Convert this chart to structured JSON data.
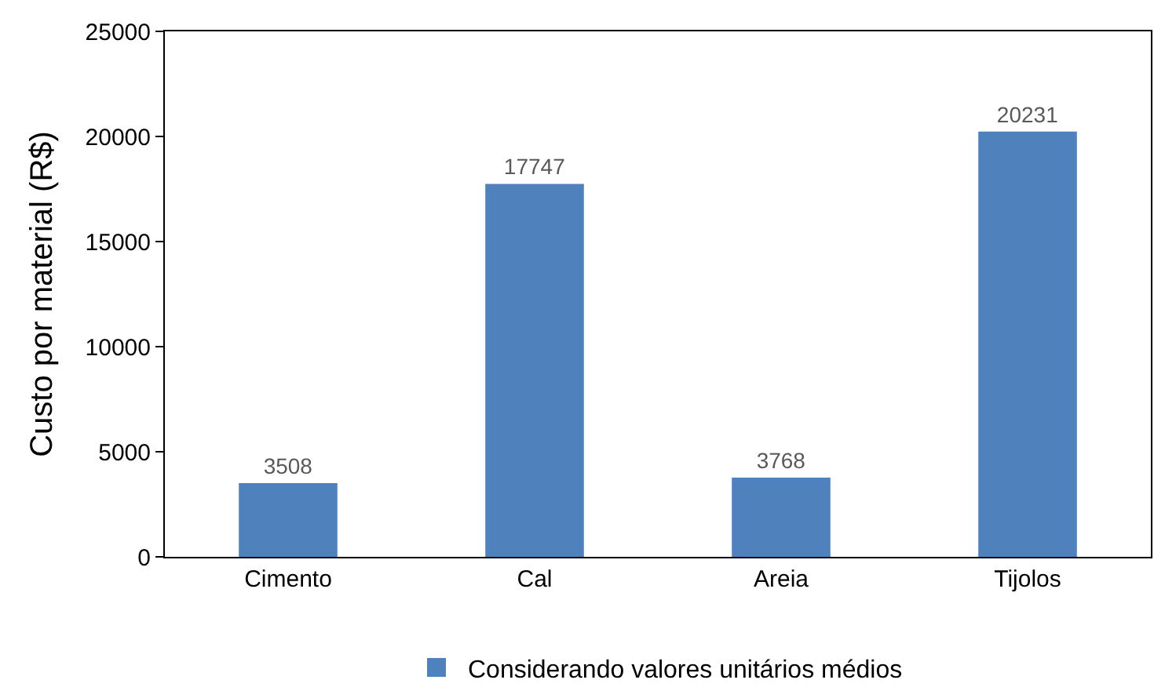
{
  "chart_data": {
    "type": "bar",
    "ylabel": "Custo por material (R$)",
    "categories": [
      "Cimento",
      "Cal",
      "Areia",
      "Tijolos"
    ],
    "series": [
      {
        "name": "Considerando valores unitários médios",
        "color": "#4f81bd",
        "values": [
          3508,
          17747,
          3768,
          20231
        ]
      }
    ],
    "ylim": [
      0,
      25000
    ],
    "yticks": [
      0,
      5000,
      10000,
      15000,
      20000,
      25000
    ],
    "data_labels": true,
    "legend": "bottom"
  }
}
